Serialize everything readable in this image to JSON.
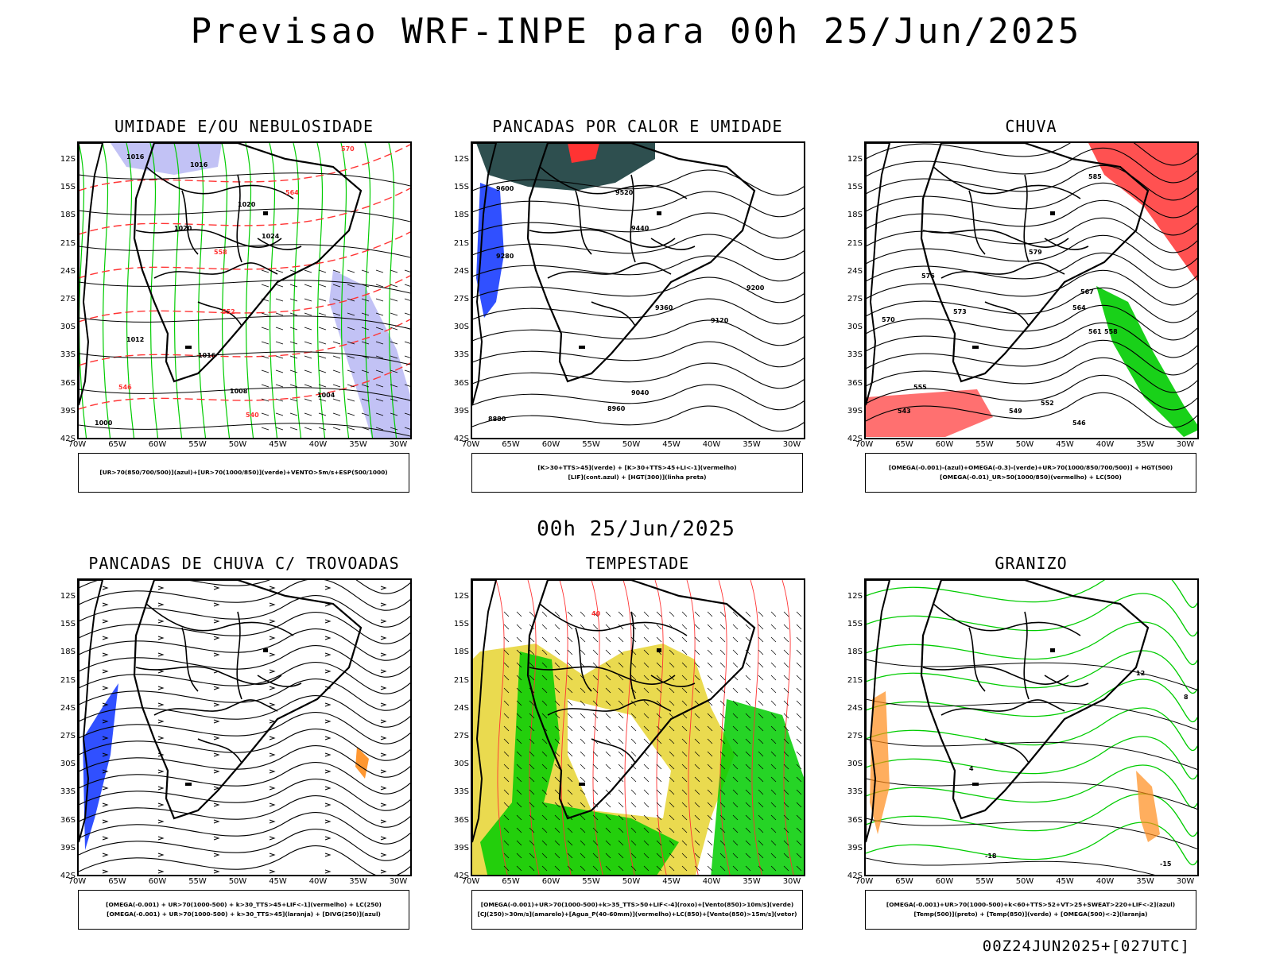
{
  "title": "Previsao WRF-INPE  para 00h 25/Jun/2025",
  "mid_title": "00h 25/Jun/2025",
  "footer": "00Z24JUN2025+[027UTC]",
  "lat_labels": [
    "12S",
    "15S",
    "18S",
    "21S",
    "24S",
    "27S",
    "30S",
    "33S",
    "36S",
    "39S",
    "42S"
  ],
  "lon_labels": [
    "70W",
    "65W",
    "60W",
    "55W",
    "50W",
    "45W",
    "40W",
    "35W",
    "30W"
  ],
  "panels": [
    {
      "title": "UMIDADE E/OU NEBULOSIDADE",
      "legend": [
        "[UR>70(850/700/500)](azul)+[UR>70(1000/850)](verde)+VENTO>5m/s+ESP(500/1000)"
      ],
      "labels": [
        "1016",
        "1016",
        "1020",
        "1024",
        "1020",
        "1016",
        "1012",
        "1008",
        "1004",
        "1000",
        "570",
        "564",
        "558",
        "552",
        "546",
        "540"
      ]
    },
    {
      "title": "PANCADAS POR CALOR E UMIDADE",
      "legend": [
        "[K>30+TTS>45](verde) + [K>30+TTS>45+LI<-1](vermelho)",
        "[LIF](cont.azul) + [HGT(300)](linha preta)"
      ],
      "labels": [
        "9600",
        "9520",
        "9440",
        "9360",
        "9280",
        "9200",
        "9120",
        "9040",
        "8960",
        "8880"
      ]
    },
    {
      "title": "CHUVA",
      "legend": [
        "[OMEGA(-0.001)-(azul)+OMEGA(-0.3)-(verde)+UR>70(1000/850/700/500)] + HGT(500)",
        "[OMEGA(-0.01)_UR>50(1000/850)(vermelho) + LC(500)"
      ],
      "labels": [
        "585",
        "579",
        "576",
        "573",
        "570",
        "567",
        "564",
        "561",
        "558",
        "555",
        "552",
        "549",
        "546",
        "543"
      ]
    },
    {
      "title": "PANCADAS DE CHUVA C/ TROVOADAS",
      "legend": [
        "[OMEGA(-0.001) + UR>70(1000-500) + k>30_TTS>45+LIF<-1](vermelho) + LC(250)",
        "[OMEGA(-0.001) + UR>70(1000-500) + k>30_TTS>45](laranja) + [DIVG(250)](azul)"
      ],
      "labels": []
    },
    {
      "title": "TEMPESTADE",
      "legend": [
        "[OMEGA(-0.001)+UR>70(1000-500)+k>35_TTS>50+LIF<-4](roxo)+[Vento(850)>10m/s](verde)",
        "[CJ(250)>30m/s](amarelo)+[Agua_P(40-60mm)](vermelho)+LC(850)+[Vento(850)>15m/s](vetor)"
      ],
      "labels": [
        "40"
      ]
    },
    {
      "title": "GRANIZO",
      "legend": [
        "[OMEGA(-0.001)+UR>70(1000-500)+k<60+TTS>52+VT>25+SWEAT>220+LIF<-2](azul)",
        "[Temp(500)](preto) + [Temp(850)](verde) + [OMEGA(500)<-2](laranja)"
      ],
      "labels": [
        "12",
        "8",
        "4",
        "-18",
        "-15"
      ]
    }
  ],
  "colors": {
    "contour_black": "#000000",
    "green": "#00cc00",
    "red": "#ff3333",
    "blue": "#1a3dff",
    "lavender": "#b3b3f2",
    "yellow": "#e6d430",
    "orange": "#ff8c1a",
    "darkteal": "#2e4f4f"
  }
}
